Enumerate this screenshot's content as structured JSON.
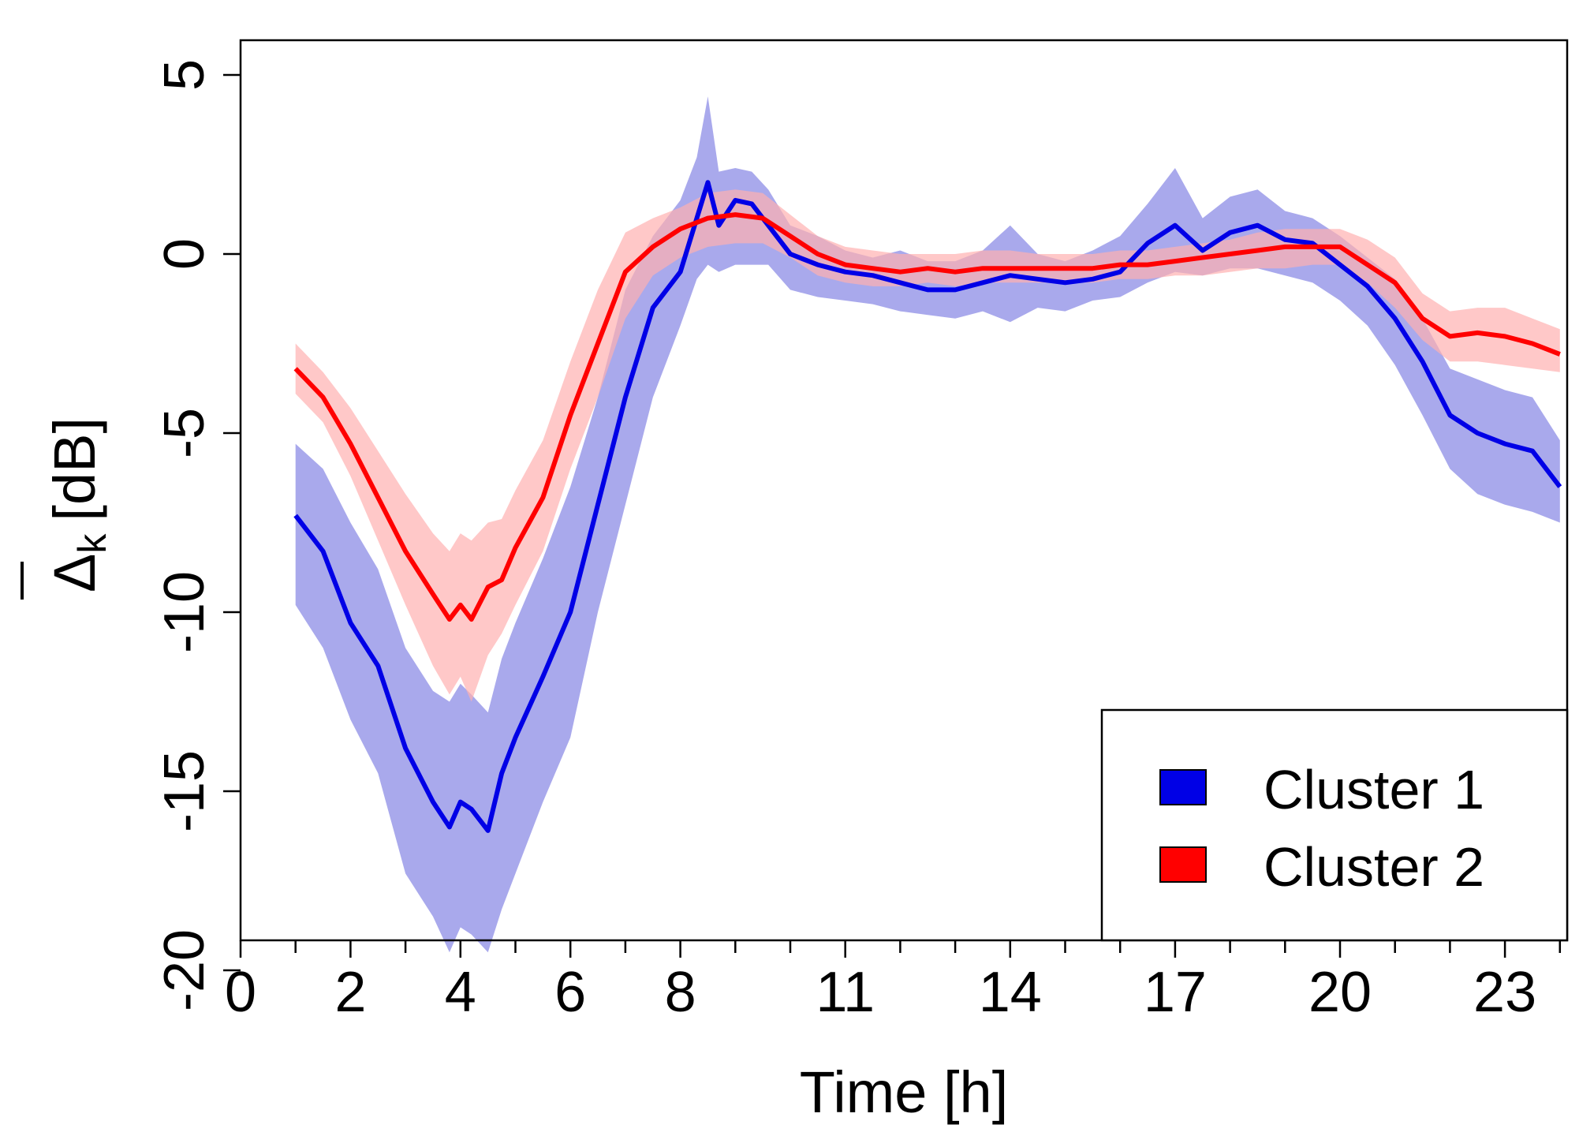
{
  "chart_data": {
    "type": "line",
    "title": "",
    "xlabel": "Time [h]",
    "ylabel_symbol": "Δ",
    "ylabel_subscript": "k",
    "ylabel_unit": "[dB]",
    "xlim": [
      0,
      24.5
    ],
    "ylim": [
      -21,
      6
    ],
    "xticks": [
      0,
      2,
      4,
      6,
      8,
      11,
      14,
      17,
      20,
      23
    ],
    "xticks_minor": [
      1,
      3,
      5,
      7,
      9,
      10,
      12,
      13,
      15,
      16,
      18,
      19,
      21,
      22,
      24
    ],
    "yticks": [
      5,
      0,
      -5,
      -10,
      -15,
      -20
    ],
    "legend_position": "bottom-right",
    "series": [
      {
        "name": "Cluster 1",
        "color": "#0000e6",
        "band_color": "#8c8ce6",
        "x": [
          1.0,
          1.5,
          2.0,
          2.5,
          3.0,
          3.5,
          3.8,
          4.0,
          4.2,
          4.5,
          4.75,
          5.0,
          5.5,
          6.0,
          6.5,
          7.0,
          7.5,
          8.0,
          8.3,
          8.5,
          8.7,
          9.0,
          9.3,
          9.6,
          10.0,
          10.5,
          11.0,
          11.5,
          12.0,
          12.5,
          13.0,
          13.5,
          14.0,
          14.5,
          15.0,
          15.5,
          16.0,
          16.5,
          17.0,
          17.5,
          18.0,
          18.5,
          19.0,
          19.5,
          20.0,
          20.5,
          21.0,
          21.5,
          22.0,
          22.5,
          23.0,
          23.5,
          24.0
        ],
        "values": [
          -7.3,
          -8.3,
          -10.3,
          -11.5,
          -13.8,
          -15.3,
          -16.0,
          -15.3,
          -15.5,
          -16.1,
          -14.5,
          -13.5,
          -11.8,
          -10.0,
          -7.0,
          -4.0,
          -1.5,
          -0.5,
          1.0,
          2.0,
          0.8,
          1.5,
          1.4,
          0.8,
          0.0,
          -0.3,
          -0.5,
          -0.6,
          -0.8,
          -1.0,
          -1.0,
          -0.8,
          -0.6,
          -0.7,
          -0.8,
          -0.7,
          -0.5,
          0.3,
          0.8,
          0.1,
          0.6,
          0.8,
          0.4,
          0.3,
          -0.3,
          -0.9,
          -1.8,
          -3.0,
          -4.5,
          -5.0,
          -5.3,
          -5.5,
          -6.5
        ],
        "lower": [
          -9.8,
          -11.0,
          -13.0,
          -14.5,
          -17.3,
          -18.5,
          -19.5,
          -18.8,
          -19.0,
          -19.5,
          -18.3,
          -17.3,
          -15.3,
          -13.5,
          -10.0,
          -7.0,
          -4.0,
          -2.0,
          -0.7,
          -0.3,
          -0.5,
          -0.3,
          -0.3,
          -0.3,
          -1.0,
          -1.2,
          -1.3,
          -1.4,
          -1.6,
          -1.7,
          -1.8,
          -1.6,
          -1.9,
          -1.5,
          -1.6,
          -1.3,
          -1.2,
          -0.8,
          -0.5,
          -0.6,
          -0.4,
          -0.4,
          -0.6,
          -0.8,
          -1.3,
          -2.0,
          -3.1,
          -4.5,
          -6.0,
          -6.7,
          -7.0,
          -7.2,
          -7.5
        ],
        "upper": [
          -5.3,
          -6.0,
          -7.5,
          -8.8,
          -11.0,
          -12.2,
          -12.5,
          -12.0,
          -12.3,
          -12.8,
          -11.3,
          -10.3,
          -8.5,
          -6.5,
          -4.0,
          -1.0,
          0.5,
          1.5,
          2.7,
          4.4,
          2.3,
          2.4,
          2.3,
          1.8,
          0.8,
          0.5,
          0.1,
          -0.1,
          0.1,
          -0.2,
          -0.2,
          0.1,
          0.8,
          0.0,
          -0.2,
          0.1,
          0.5,
          1.4,
          2.4,
          1.0,
          1.6,
          1.8,
          1.2,
          1.0,
          0.5,
          -0.1,
          -0.7,
          -1.8,
          -3.2,
          -3.5,
          -3.8,
          -4.0,
          -5.2
        ]
      },
      {
        "name": "Cluster 2",
        "color": "#ff0000",
        "band_color": "#ffb0b0",
        "x": [
          1.0,
          1.5,
          2.0,
          2.5,
          3.0,
          3.5,
          3.8,
          4.0,
          4.2,
          4.5,
          4.75,
          5.0,
          5.5,
          6.0,
          6.5,
          7.0,
          7.5,
          8.0,
          8.5,
          9.0,
          9.5,
          10.0,
          10.5,
          11.0,
          11.5,
          12.0,
          12.5,
          13.0,
          13.5,
          14.0,
          14.5,
          15.0,
          15.5,
          16.0,
          16.5,
          17.0,
          17.5,
          18.0,
          18.5,
          19.0,
          19.5,
          20.0,
          20.5,
          21.0,
          21.5,
          22.0,
          22.5,
          23.0,
          23.5,
          24.0
        ],
        "values": [
          -3.2,
          -4.0,
          -5.3,
          -6.8,
          -8.3,
          -9.5,
          -10.2,
          -9.8,
          -10.2,
          -9.3,
          -9.1,
          -8.2,
          -6.8,
          -4.5,
          -2.5,
          -0.5,
          0.2,
          0.7,
          1.0,
          1.1,
          1.0,
          0.5,
          0.0,
          -0.3,
          -0.4,
          -0.5,
          -0.4,
          -0.5,
          -0.4,
          -0.4,
          -0.4,
          -0.4,
          -0.4,
          -0.3,
          -0.3,
          -0.2,
          -0.1,
          0.0,
          0.1,
          0.2,
          0.2,
          0.2,
          -0.3,
          -0.8,
          -1.8,
          -2.3,
          -2.2,
          -2.3,
          -2.5,
          -2.8
        ],
        "lower": [
          -3.9,
          -4.7,
          -6.2,
          -8.0,
          -9.8,
          -11.5,
          -12.3,
          -11.8,
          -12.5,
          -11.2,
          -10.6,
          -9.8,
          -8.3,
          -6.0,
          -4.0,
          -1.8,
          -0.6,
          -0.1,
          0.2,
          0.3,
          0.3,
          -0.1,
          -0.6,
          -0.8,
          -0.9,
          -0.9,
          -0.8,
          -0.9,
          -0.8,
          -0.8,
          -0.8,
          -0.8,
          -0.8,
          -0.7,
          -0.7,
          -0.6,
          -0.6,
          -0.5,
          -0.4,
          -0.4,
          -0.3,
          -0.3,
          -0.8,
          -1.5,
          -2.4,
          -3.0,
          -3.0,
          -3.1,
          -3.2,
          -3.3
        ],
        "upper": [
          -2.5,
          -3.3,
          -4.3,
          -5.5,
          -6.7,
          -7.8,
          -8.3,
          -7.8,
          -8.0,
          -7.5,
          -7.4,
          -6.6,
          -5.2,
          -3.0,
          -1.0,
          0.6,
          1.0,
          1.3,
          1.7,
          1.8,
          1.7,
          1.1,
          0.5,
          0.2,
          0.1,
          0.0,
          0.0,
          0.0,
          0.1,
          0.1,
          0.0,
          0.0,
          0.0,
          0.1,
          0.1,
          0.2,
          0.3,
          0.4,
          0.6,
          0.7,
          0.7,
          0.7,
          0.4,
          -0.1,
          -1.1,
          -1.6,
          -1.5,
          -1.5,
          -1.8,
          -2.1
        ]
      }
    ]
  }
}
